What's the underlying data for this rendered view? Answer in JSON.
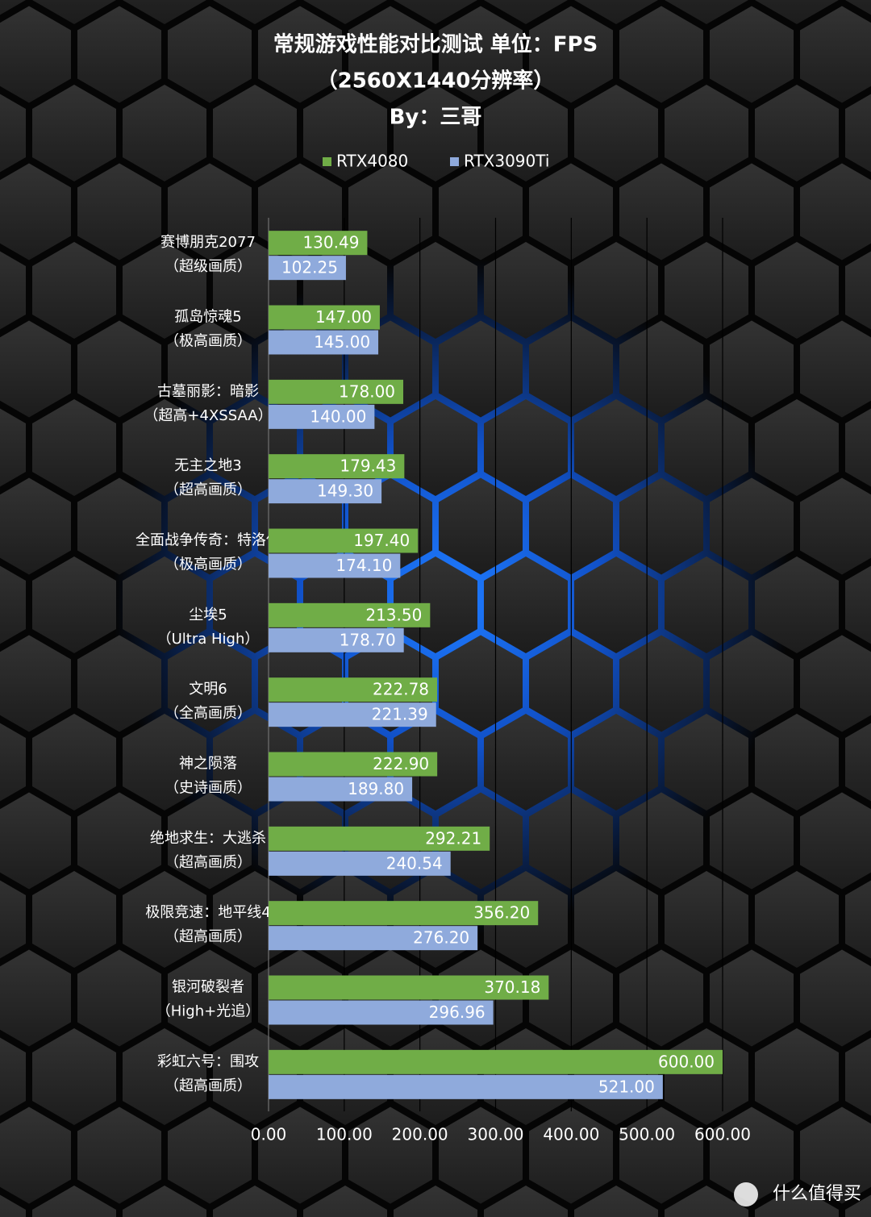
{
  "chart_data": {
    "type": "bar",
    "orientation": "horizontal",
    "title": "常规游戏性能对比测试 单位：FPS",
    "subtitle": "（2560X1440分辨率）",
    "author": "By：三哥",
    "watermark": "什么值得买",
    "categories": [
      [
        "赛博朋克2077",
        "（超级画质）"
      ],
      [
        "孤岛惊魂5",
        "（极高画质）"
      ],
      [
        "古墓丽影：暗影",
        "（超高+4XSSAA）"
      ],
      [
        "无主之地3",
        "（超高画质）"
      ],
      [
        "全面战争传奇：特洛伊",
        "（极高画质）"
      ],
      [
        "尘埃5",
        "（Ultra High）"
      ],
      [
        "文明6",
        "（全高画质）"
      ],
      [
        "神之陨落",
        "（史诗画质）"
      ],
      [
        "绝地求生：大逃杀",
        "（超高画质）"
      ],
      [
        "极限竞速：地平线4",
        "（超高画质）"
      ],
      [
        "银河破裂者",
        "（High+光追）"
      ],
      [
        "彩虹六号：围攻",
        "（超高画质）"
      ]
    ],
    "series": [
      {
        "name": "RTX4080",
        "color": "#70ad47",
        "values": [
          130.49,
          147,
          178,
          179.43,
          197.4,
          213.5,
          222.78,
          222.9,
          292.21,
          356.2,
          370.18,
          600
        ],
        "value_labels": [
          "130.49",
          "147.00",
          "178.00",
          "179.43",
          "197.40",
          "213.50",
          "222.78",
          "222.90",
          "292.21",
          "356.20",
          "370.18",
          "600.00"
        ]
      },
      {
        "name": "RTX3090Ti",
        "color": "#8faadc",
        "values": [
          102.25,
          145,
          140,
          149.3,
          174.1,
          178.7,
          221.39,
          189.8,
          240.54,
          276.2,
          296.96,
          521
        ],
        "value_labels": [
          "102.25",
          "145.00",
          "140.00",
          "149.30",
          "174.10",
          "178.70",
          "221.39",
          "189.80",
          "240.54",
          "276.20",
          "296.96",
          "521.00"
        ]
      }
    ],
    "xlim": [
      0,
      600
    ],
    "xticks": [
      {
        "value": 0,
        "label": "0.00"
      },
      {
        "value": 100,
        "label": "100.00"
      },
      {
        "value": 200,
        "label": "200.00"
      },
      {
        "value": 300,
        "label": "300.00"
      },
      {
        "value": 400,
        "label": "400.00"
      },
      {
        "value": 500,
        "label": "500.00"
      },
      {
        "value": 600,
        "label": "600.00"
      }
    ],
    "grid": true,
    "legend": "top"
  }
}
